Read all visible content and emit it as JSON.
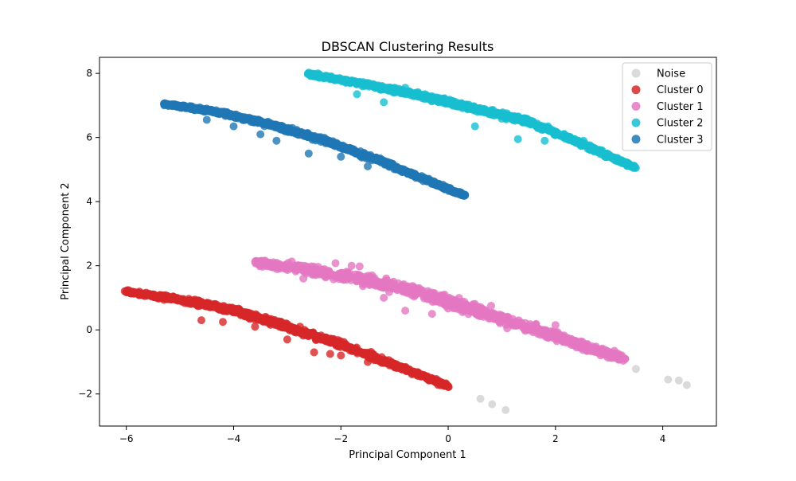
{
  "chart_data": {
    "type": "scatter",
    "title": "DBSCAN Clustering Results",
    "xlabel": "Principal Component 1",
    "ylabel": "Principal Component 2",
    "xlim": [
      -6.5,
      5.0
    ],
    "ylim": [
      -3.0,
      8.5
    ],
    "xticks": [
      -6,
      -4,
      -2,
      0,
      2,
      4
    ],
    "yticks": [
      -2,
      0,
      2,
      4,
      6,
      8
    ],
    "xtick_labels": [
      "−6",
      "−4",
      "−2",
      "0",
      "2",
      "4"
    ],
    "ytick_labels": [
      "−2",
      "0",
      "2",
      "4",
      "6",
      "8"
    ],
    "grid": false,
    "legend_position": "top-right",
    "series": [
      {
        "name": "Noise",
        "color": "#d3d3d3",
        "points": [
          [
            3.5,
            -1.22
          ],
          [
            4.1,
            -1.55
          ],
          [
            4.3,
            -1.58
          ],
          [
            4.45,
            -1.72
          ],
          [
            0.6,
            -2.15
          ],
          [
            0.82,
            -2.32
          ],
          [
            1.07,
            -2.5
          ]
        ]
      },
      {
        "name": "Cluster 0",
        "color": "#d62728",
        "spine": [
          [
            -6.0,
            1.18
          ],
          [
            -5.0,
            0.95
          ],
          [
            -4.0,
            0.6
          ],
          [
            -3.0,
            0.1
          ],
          [
            -2.0,
            -0.45
          ],
          [
            -1.0,
            -1.1
          ],
          [
            0.0,
            -1.75
          ]
        ],
        "width": 0.16,
        "outliers": [
          [
            -4.2,
            0.25
          ],
          [
            -4.6,
            0.3
          ],
          [
            -3.0,
            -0.3
          ],
          [
            -2.5,
            -0.7
          ],
          [
            -2.2,
            -0.75
          ],
          [
            -1.5,
            -1.0
          ],
          [
            -3.6,
            0.1
          ],
          [
            -2.0,
            -0.8
          ]
        ]
      },
      {
        "name": "Cluster 1",
        "color": "#e377c2",
        "spine": [
          [
            -3.6,
            2.12
          ],
          [
            -2.5,
            1.85
          ],
          [
            -1.5,
            1.55
          ],
          [
            -0.5,
            1.15
          ],
          [
            0.5,
            0.6
          ],
          [
            1.5,
            0.1
          ],
          [
            2.5,
            -0.5
          ],
          [
            3.3,
            -0.9
          ]
        ],
        "width": 0.3,
        "outliers": [
          [
            -2.1,
            2.08
          ],
          [
            -1.8,
            2.0
          ],
          [
            -1.65,
            1.98
          ],
          [
            -2.7,
            1.6
          ],
          [
            -1.2,
            1.0
          ],
          [
            0.8,
            0.75
          ],
          [
            -0.8,
            0.6
          ],
          [
            -0.3,
            0.5
          ],
          [
            2.0,
            0.15
          ],
          [
            1.1,
            0.05
          ]
        ]
      },
      {
        "name": "Cluster 2",
        "color": "#17becf",
        "spine": [
          [
            -2.6,
            7.98
          ],
          [
            -1.5,
            7.65
          ],
          [
            -0.5,
            7.3
          ],
          [
            0.5,
            6.9
          ],
          [
            1.5,
            6.5
          ],
          [
            2.5,
            5.8
          ],
          [
            3.5,
            5.05
          ]
        ],
        "width": 0.14,
        "outliers": [
          [
            -1.7,
            7.35
          ],
          [
            -1.2,
            7.1
          ],
          [
            -1.0,
            7.55
          ],
          [
            -0.8,
            7.55
          ],
          [
            0.5,
            6.35
          ],
          [
            1.3,
            5.95
          ],
          [
            1.8,
            5.9
          ],
          [
            -1.6,
            7.6
          ]
        ]
      },
      {
        "name": "Cluster 3",
        "color": "#1f77b4",
        "spine": [
          [
            -5.3,
            7.05
          ],
          [
            -4.3,
            6.8
          ],
          [
            -3.3,
            6.4
          ],
          [
            -2.3,
            5.9
          ],
          [
            -1.3,
            5.3
          ],
          [
            -0.3,
            4.6
          ],
          [
            0.3,
            4.2
          ]
        ],
        "width": 0.12,
        "outliers": [
          [
            -4.0,
            6.35
          ],
          [
            -3.5,
            6.1
          ],
          [
            -2.6,
            5.5
          ],
          [
            -2.0,
            5.4
          ],
          [
            -1.5,
            5.1
          ],
          [
            -3.2,
            5.9
          ],
          [
            -4.5,
            6.55
          ]
        ]
      }
    ]
  }
}
